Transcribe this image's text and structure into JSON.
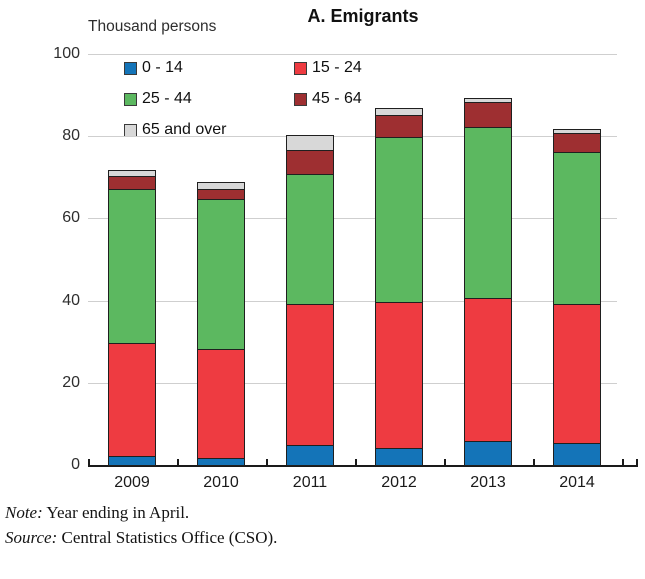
{
  "header": {
    "unit_label": "Thousand persons",
    "title": "A. Emigrants"
  },
  "chart_data": {
    "type": "bar",
    "stacked": true,
    "title": "A. Emigrants",
    "ylabel": "Thousand persons",
    "xlabel": "",
    "ylim": [
      0,
      100
    ],
    "yticks": [
      0,
      20,
      40,
      60,
      80,
      100
    ],
    "grid": true,
    "legend_position": "top-left",
    "categories": [
      "2009",
      "2010",
      "2011",
      "2012",
      "2013",
      "2014"
    ],
    "series": [
      {
        "name": "0 - 14",
        "color": "#1474b8",
        "values": [
          2.5,
          2.0,
          5.0,
          4.5,
          6.0,
          5.5
        ]
      },
      {
        "name": "15 - 24",
        "color": "#ee3b41",
        "values": [
          27.5,
          26.5,
          34.5,
          35.5,
          35.0,
          34.0
        ]
      },
      {
        "name": "25 - 44",
        "color": "#5cb860",
        "values": [
          37.5,
          36.5,
          31.5,
          40.0,
          41.5,
          37.0
        ]
      },
      {
        "name": "45 - 64",
        "color": "#9e2f31",
        "values": [
          3.0,
          2.5,
          6.0,
          5.5,
          6.0,
          4.5
        ]
      },
      {
        "name": "65 and over",
        "color": "#d8d8d8",
        "values": [
          1.5,
          1.5,
          3.5,
          1.5,
          1.0,
          1.0
        ]
      }
    ],
    "totals": [
      72.0,
      69.0,
      80.5,
      87.0,
      89.5,
      82.0
    ]
  },
  "footer": {
    "note_label": "Note:",
    "note_text": "Year ending in April.",
    "source_label": "Source:",
    "source_text": "Central Statistics Office (CSO)."
  }
}
